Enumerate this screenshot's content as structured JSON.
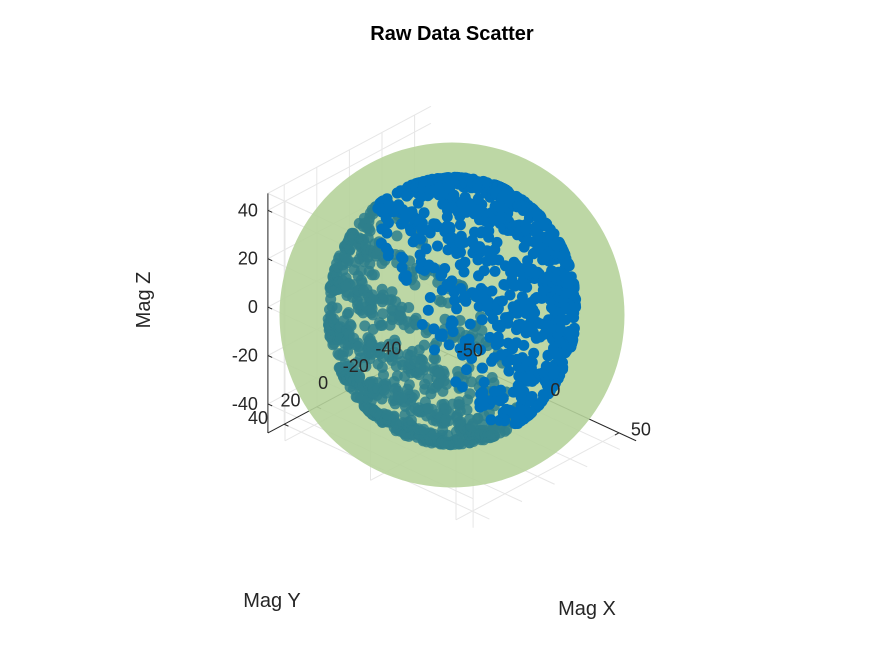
{
  "chart_data": {
    "type": "scatter",
    "title": "Raw Data Scatter",
    "xlabel": "Mag X",
    "ylabel": "Mag Y",
    "zlabel": "Mag Z",
    "xticks": [
      -50,
      0,
      50
    ],
    "yticks": [
      -40,
      -20,
      0,
      20,
      40
    ],
    "zticks": [
      -40,
      -20,
      0,
      20,
      40
    ],
    "xlim": [
      -60,
      60
    ],
    "ylim": [
      -50,
      50
    ],
    "zlim": [
      -52,
      47
    ],
    "grid": true,
    "fitted_sphere": {
      "center": [
        0,
        0,
        0
      ],
      "radius": 50
    },
    "n_points_approx": 2000,
    "colors": {
      "points": "#0072BD",
      "sphere_fill": "#B6D39B",
      "axis": "#262626",
      "grid": "#E6E6E6"
    }
  }
}
